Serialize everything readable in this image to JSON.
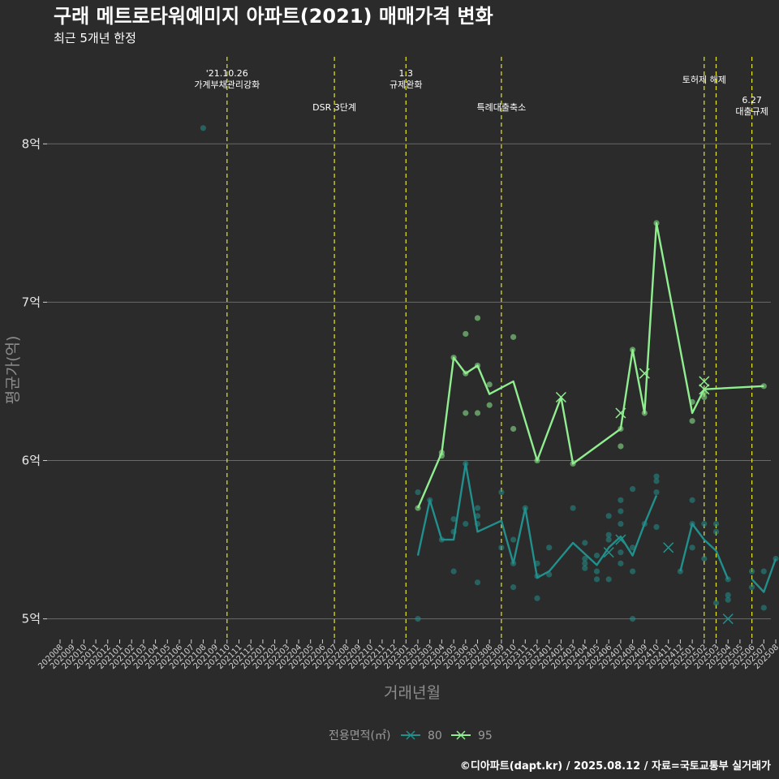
{
  "chart_data": {
    "type": "line",
    "title": "구래 메트로타워예미지 아파트(2021) 매매가격 변화",
    "subtitle": "최근 5개년 한정",
    "xlabel": "거래년월",
    "ylabel": "평균가(억)",
    "caption": "©디아파트(dapt.kr) / 2025.08.12 / 자료=국토교통부 실거래가",
    "y_unit": "억",
    "ylim": [
      4.87,
      8.55
    ],
    "yticks": [
      5,
      6,
      7,
      8
    ],
    "ytick_labels": [
      "5억",
      "6억",
      "7억",
      "8억"
    ],
    "grid": true,
    "legend": {
      "title": "전용면적(㎡)",
      "position": "bottom",
      "entries": [
        "80",
        "95"
      ]
    },
    "categories": [
      "202008",
      "202009",
      "202010",
      "202011",
      "202012",
      "202101",
      "202102",
      "202103",
      "202104",
      "202105",
      "202106",
      "202107",
      "202108",
      "202109",
      "202110",
      "202111",
      "202112",
      "202201",
      "202202",
      "202203",
      "202204",
      "202205",
      "202206",
      "202207",
      "202208",
      "202209",
      "202210",
      "202211",
      "202212",
      "202301",
      "202302",
      "202303",
      "202304",
      "202305",
      "202306",
      "202307",
      "202308",
      "202309",
      "202310",
      "202311",
      "202312",
      "202401",
      "202402",
      "202403",
      "202404",
      "202405",
      "202406",
      "202407",
      "202408",
      "202409",
      "202410",
      "202411",
      "202412",
      "202501",
      "202502",
      "202503",
      "202504",
      "202505",
      "202506",
      "202507",
      "202508"
    ],
    "events": [
      {
        "month": "202110",
        "lines": [
          "'21.10.26",
          "가계부채관리강화"
        ],
        "level": 1
      },
      {
        "month": "202207",
        "lines": [
          "DSR 3단계"
        ],
        "level": 3
      },
      {
        "month": "202301",
        "lines": [
          "1.3",
          "규제완화"
        ],
        "level": 1
      },
      {
        "month": "202309",
        "lines": [
          "특례대출축소"
        ],
        "level": 3
      },
      {
        "month": "202502",
        "lines": [
          "토허제 해제"
        ],
        "level": 2
      },
      {
        "month": "202503",
        "lines": [],
        "level": 0
      },
      {
        "month": "202506",
        "lines": [
          "6.27",
          "대출규제"
        ],
        "level": 4
      }
    ],
    "series": [
      {
        "name": "80",
        "color": "#21908c",
        "line": [
          {
            "segment": [
              [
                "202302",
                5.4
              ],
              [
                "202303",
                5.75
              ],
              [
                "202304",
                5.5
              ],
              [
                "202305",
                5.5
              ],
              [
                "202306",
                5.98
              ],
              [
                "202307",
                5.55
              ],
              [
                "202309",
                5.62
              ],
              [
                "202310",
                5.35
              ],
              [
                "202311",
                5.7
              ],
              [
                "202312",
                5.26
              ],
              [
                "202401",
                5.3
              ],
              [
                "202403",
                5.48
              ],
              [
                "202405",
                5.34
              ],
              [
                "202406",
                5.45
              ],
              [
                "202407",
                5.52
              ],
              [
                "202408",
                5.4
              ],
              [
                "202409",
                5.6
              ],
              [
                "202410",
                5.78
              ]
            ]
          },
          {
            "segment": [
              [
                "202412",
                5.3
              ],
              [
                "202501",
                5.6
              ],
              [
                "202502",
                5.5
              ],
              [
                "202503",
                5.43
              ],
              [
                "202504",
                5.25
              ]
            ]
          },
          {
            "segment": [
              [
                "202506",
                5.25
              ],
              [
                "202507",
                5.17
              ],
              [
                "202508",
                5.38
              ]
            ]
          }
        ],
        "points": [
          [
            "202108",
            8.1
          ],
          [
            "202302",
            5.8
          ],
          [
            "202302",
            5.0
          ],
          [
            "202303",
            5.75
          ],
          [
            "202304",
            5.5
          ],
          [
            "202305",
            5.63
          ],
          [
            "202305",
            5.55
          ],
          [
            "202305",
            5.3
          ],
          [
            "202306",
            5.98
          ],
          [
            "202306",
            5.6
          ],
          [
            "202307",
            5.7
          ],
          [
            "202307",
            5.65
          ],
          [
            "202307",
            5.6
          ],
          [
            "202307",
            5.23
          ],
          [
            "202309",
            5.8
          ],
          [
            "202309",
            5.45
          ],
          [
            "202310",
            5.5
          ],
          [
            "202310",
            5.35
          ],
          [
            "202310",
            5.2
          ],
          [
            "202311",
            5.7
          ],
          [
            "202312",
            5.35
          ],
          [
            "202312",
            5.27
          ],
          [
            "202312",
            5.13
          ],
          [
            "202401",
            5.45
          ],
          [
            "202401",
            5.28
          ],
          [
            "202403",
            5.7
          ],
          [
            "202404",
            5.48
          ],
          [
            "202404",
            5.38
          ],
          [
            "202404",
            5.35
          ],
          [
            "202404",
            5.32
          ],
          [
            "202405",
            5.4
          ],
          [
            "202405",
            5.3
          ],
          [
            "202405",
            5.25
          ],
          [
            "202406",
            5.65
          ],
          [
            "202406",
            5.53
          ],
          [
            "202406",
            5.5
          ],
          [
            "202406",
            5.25
          ],
          [
            "202407",
            5.75
          ],
          [
            "202407",
            5.68
          ],
          [
            "202407",
            5.6
          ],
          [
            "202407",
            5.42
          ],
          [
            "202407",
            5.35
          ],
          [
            "202408",
            5.82
          ],
          [
            "202408",
            5.45
          ],
          [
            "202408",
            5.3
          ],
          [
            "202408",
            5.0
          ],
          [
            "202409",
            5.6
          ],
          [
            "202410",
            5.9
          ],
          [
            "202410",
            5.87
          ],
          [
            "202410",
            5.8
          ],
          [
            "202410",
            5.58
          ],
          [
            "202412",
            5.3
          ],
          [
            "202501",
            5.75
          ],
          [
            "202501",
            5.6
          ],
          [
            "202501",
            5.45
          ],
          [
            "202502",
            5.6
          ],
          [
            "202502",
            5.38
          ],
          [
            "202503",
            5.6
          ],
          [
            "202503",
            5.55
          ],
          [
            "202503",
            5.1
          ],
          [
            "202504",
            5.25
          ],
          [
            "202504",
            5.15
          ],
          [
            "202504",
            5.12
          ],
          [
            "202506",
            5.3
          ],
          [
            "202506",
            5.2
          ],
          [
            "202507",
            5.3
          ],
          [
            "202507",
            5.07
          ],
          [
            "202508",
            5.38
          ]
        ],
        "crosses": [
          [
            "202406",
            5.42
          ],
          [
            "202407",
            5.5
          ],
          [
            "202411",
            5.45
          ],
          [
            "202504",
            5.0
          ]
        ]
      },
      {
        "name": "95",
        "color": "#90ee90",
        "line": [
          {
            "segment": [
              [
                "202302",
                5.7
              ],
              [
                "202304",
                6.05
              ],
              [
                "202305",
                6.65
              ],
              [
                "202306",
                6.55
              ],
              [
                "202307",
                6.6
              ],
              [
                "202308",
                6.42
              ],
              [
                "202310",
                6.5
              ],
              [
                "202312",
                6.0
              ],
              [
                "202402",
                6.4
              ],
              [
                "202403",
                5.98
              ],
              [
                "202407",
                6.2
              ],
              [
                "202408",
                6.7
              ],
              [
                "202409",
                6.3
              ],
              [
                "202410",
                7.5
              ],
              [
                "202501",
                6.3
              ],
              [
                "202502",
                6.45
              ],
              [
                "202507",
                6.47
              ]
            ]
          }
        ],
        "points": [
          [
            "202302",
            5.7
          ],
          [
            "202304",
            6.05
          ],
          [
            "202304",
            6.03
          ],
          [
            "202305",
            6.65
          ],
          [
            "202306",
            6.8
          ],
          [
            "202306",
            6.55
          ],
          [
            "202306",
            6.3
          ],
          [
            "202307",
            6.9
          ],
          [
            "202307",
            6.6
          ],
          [
            "202307",
            6.3
          ],
          [
            "202308",
            6.48
          ],
          [
            "202308",
            6.35
          ],
          [
            "202310",
            6.78
          ],
          [
            "202310",
            6.2
          ],
          [
            "202312",
            6.0
          ],
          [
            "202403",
            5.98
          ],
          [
            "202407",
            6.2
          ],
          [
            "202407",
            6.09
          ],
          [
            "202408",
            6.7
          ],
          [
            "202409",
            6.3
          ],
          [
            "202410",
            7.5
          ],
          [
            "202501",
            6.37
          ],
          [
            "202501",
            6.25
          ],
          [
            "202502",
            6.43
          ],
          [
            "202502",
            6.4
          ],
          [
            "202507",
            6.47
          ]
        ],
        "crosses": [
          [
            "202402",
            6.4
          ],
          [
            "202407",
            6.3
          ],
          [
            "202409",
            6.55
          ],
          [
            "202502",
            6.5
          ],
          [
            "202502",
            6.45
          ]
        ]
      }
    ]
  }
}
